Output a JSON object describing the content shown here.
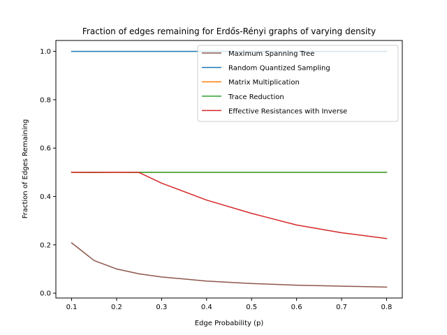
{
  "chart_data": {
    "type": "line",
    "title": "Fraction of edges remaining for Erdős-Rényi graphs of varying density",
    "xlabel": "Edge Probability (p)",
    "ylabel": "Fraction of Edges Remaining",
    "xlim": [
      0.065,
      0.835
    ],
    "ylim": [
      -0.02,
      1.045
    ],
    "xticks": [
      0.1,
      0.2,
      0.3,
      0.4,
      0.5,
      0.6,
      0.7,
      0.8
    ],
    "xtick_labels": [
      "0.1",
      "0.2",
      "0.3",
      "0.4",
      "0.5",
      "0.6",
      "0.7",
      "0.8"
    ],
    "yticks": [
      0.0,
      0.2,
      0.4,
      0.6,
      0.8,
      1.0
    ],
    "ytick_labels": [
      "0.0",
      "0.2",
      "0.4",
      "0.6",
      "0.8",
      "1.0"
    ],
    "grid": false,
    "legend_position": "top-right",
    "series": [
      {
        "name": "Maximum Spanning Tree",
        "color": "#8c564b",
        "x": [
          0.1,
          0.15,
          0.2,
          0.25,
          0.3,
          0.4,
          0.5,
          0.6,
          0.7,
          0.8
        ],
        "y": [
          0.208,
          0.135,
          0.1,
          0.08,
          0.067,
          0.05,
          0.04,
          0.033,
          0.029,
          0.025
        ]
      },
      {
        "name": "Random Quantized Sampling",
        "color": "#1f77b4",
        "x": [
          0.1,
          0.15,
          0.2,
          0.25,
          0.3,
          0.4,
          0.5,
          0.6,
          0.7,
          0.8
        ],
        "y": [
          1.0,
          1.0,
          1.0,
          1.0,
          1.0,
          1.0,
          1.0,
          1.0,
          1.0,
          1.0
        ]
      },
      {
        "name": "Matrix Multiplication",
        "color": "#ff7f0e",
        "x": [
          0.1,
          0.15,
          0.2,
          0.25,
          0.3,
          0.4,
          0.5,
          0.6,
          0.7,
          0.8
        ],
        "y": [
          0.5,
          0.5,
          0.5,
          0.5,
          0.5,
          0.5,
          0.5,
          0.5,
          0.5,
          0.5
        ]
      },
      {
        "name": "Trace Reduction",
        "color": "#2ca02c",
        "x": [
          0.1,
          0.15,
          0.2,
          0.25,
          0.3,
          0.4,
          0.5,
          0.6,
          0.7,
          0.8
        ],
        "y": [
          0.5,
          0.5,
          0.5,
          0.5,
          0.5,
          0.5,
          0.5,
          0.5,
          0.5,
          0.5
        ]
      },
      {
        "name": "Effective Resistances with Inverse",
        "color": "#d62728",
        "x": [
          0.1,
          0.15,
          0.2,
          0.25,
          0.3,
          0.4,
          0.5,
          0.6,
          0.7,
          0.8
        ],
        "y": [
          0.5,
          0.499,
          0.5,
          0.499,
          0.455,
          0.385,
          0.33,
          0.282,
          0.25,
          0.226
        ]
      }
    ]
  }
}
